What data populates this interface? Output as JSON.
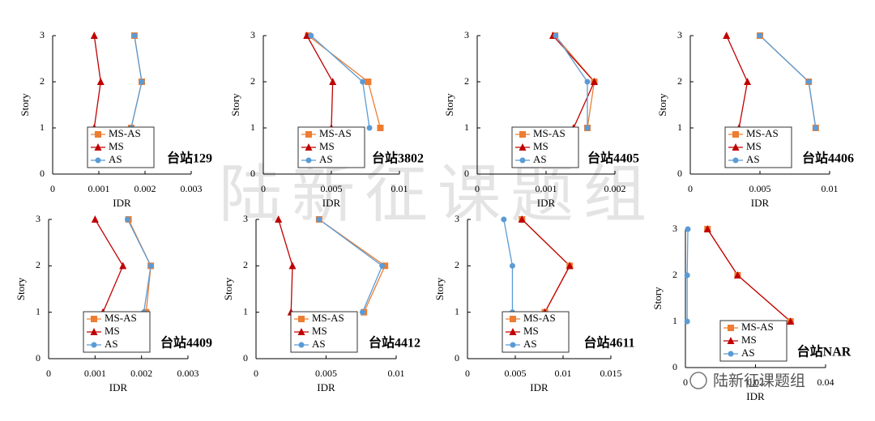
{
  "watermark": "陆新征课题组",
  "logo": "陆新征课题组",
  "chart_data": [
    {
      "type": "line",
      "title": "台站129",
      "x_label": "IDR",
      "y_label": "Story",
      "y": [
        1,
        2,
        3
      ],
      "xlim": [
        0,
        0.003
      ],
      "xticks": [
        0,
        0.001,
        0.002,
        0.003
      ],
      "ylim": [
        0,
        3
      ],
      "yticks": [
        0,
        1,
        2,
        3
      ],
      "series": [
        {
          "name": "MS-AS",
          "color": "#ed7d31",
          "marker": "square",
          "values": [
            0.0017,
            0.00193,
            0.00177
          ]
        },
        {
          "name": "MS",
          "color": "#c00000",
          "marker": "triangle",
          "values": [
            0.0009,
            0.00104,
            0.0009
          ]
        },
        {
          "name": "AS",
          "color": "#5b9bd5",
          "marker": "circle",
          "values": [
            0.0017,
            0.00193,
            0.00177
          ]
        }
      ]
    },
    {
      "type": "line",
      "title": "台站3802",
      "x_label": "IDR",
      "y_label": "Story",
      "y": [
        1,
        2,
        3
      ],
      "xlim": [
        0,
        0.01
      ],
      "xticks": [
        0,
        0.005,
        0.01
      ],
      "ylim": [
        0,
        3
      ],
      "yticks": [
        0,
        1,
        2,
        3
      ],
      "series": [
        {
          "name": "MS-AS",
          "color": "#ed7d31",
          "marker": "square",
          "values": [
            0.0086,
            0.0077,
            0.0033
          ]
        },
        {
          "name": "MS",
          "color": "#c00000",
          "marker": "triangle",
          "values": [
            0.005,
            0.0051,
            0.0032
          ]
        },
        {
          "name": "AS",
          "color": "#5b9bd5",
          "marker": "circle",
          "values": [
            0.0078,
            0.0073,
            0.0035
          ]
        }
      ]
    },
    {
      "type": "line",
      "title": "台站4405",
      "x_label": "IDR",
      "y_label": "Story",
      "y": [
        1,
        2,
        3
      ],
      "xlim": [
        0,
        0.002
      ],
      "xticks": [
        0,
        0.001,
        0.002
      ],
      "ylim": [
        0,
        3
      ],
      "yticks": [
        0,
        1,
        2,
        3
      ],
      "series": [
        {
          "name": "MS-AS",
          "color": "#ed7d31",
          "marker": "square",
          "values": [
            0.0016,
            0.0017,
            0.00113
          ]
        },
        {
          "name": "MS",
          "color": "#c00000",
          "marker": "triangle",
          "values": [
            0.0014,
            0.0017,
            0.0011
          ]
        },
        {
          "name": "AS",
          "color": "#5b9bd5",
          "marker": "circle",
          "values": [
            0.0016,
            0.0016,
            0.00114
          ]
        }
      ]
    },
    {
      "type": "line",
      "title": "台站4406",
      "x_label": "IDR",
      "y_label": "Story",
      "y": [
        1,
        2,
        3
      ],
      "xlim": [
        0,
        0.01
      ],
      "xticks": [
        0,
        0.005,
        0.01
      ],
      "ylim": [
        0,
        3
      ],
      "yticks": [
        0,
        1,
        2,
        3
      ],
      "series": [
        {
          "name": "MS-AS",
          "color": "#ed7d31",
          "marker": "square",
          "values": [
            0.009,
            0.0085,
            0.005
          ]
        },
        {
          "name": "MS",
          "color": "#c00000",
          "marker": "triangle",
          "values": [
            0.0035,
            0.0041,
            0.0026
          ]
        },
        {
          "name": "AS",
          "color": "#5b9bd5",
          "marker": "circle",
          "values": [
            0.009,
            0.0085,
            0.005
          ]
        }
      ]
    },
    {
      "type": "line",
      "title": "台站4409",
      "x_label": "IDR",
      "y_label": "Story",
      "y": [
        1,
        2,
        3
      ],
      "xlim": [
        0,
        0.003
      ],
      "xticks": [
        0,
        0.001,
        0.002,
        0.003
      ],
      "ylim": [
        0,
        3
      ],
      "yticks": [
        0,
        1,
        2,
        3
      ],
      "series": [
        {
          "name": "MS-AS",
          "color": "#ed7d31",
          "marker": "square",
          "values": [
            0.0021,
            0.0022,
            0.00172
          ]
        },
        {
          "name": "MS",
          "color": "#c00000",
          "marker": "triangle",
          "values": [
            0.00117,
            0.0016,
            0.001
          ]
        },
        {
          "name": "AS",
          "color": "#5b9bd5",
          "marker": "circle",
          "values": [
            0.00205,
            0.0022,
            0.0017
          ]
        }
      ]
    },
    {
      "type": "line",
      "title": "台站4412",
      "x_label": "IDR",
      "y_label": "Story",
      "y": [
        1,
        2,
        3
      ],
      "xlim": [
        0,
        0.01
      ],
      "xticks": [
        0,
        0.005,
        0.01
      ],
      "ylim": [
        0,
        3
      ],
      "yticks": [
        0,
        1,
        2,
        3
      ],
      "series": [
        {
          "name": "MS-AS",
          "color": "#ed7d31",
          "marker": "square",
          "values": [
            0.0077,
            0.0092,
            0.0045
          ]
        },
        {
          "name": "MS",
          "color": "#c00000",
          "marker": "triangle",
          "values": [
            0.0025,
            0.0026,
            0.0016
          ]
        },
        {
          "name": "AS",
          "color": "#5b9bd5",
          "marker": "circle",
          "values": [
            0.0076,
            0.009,
            0.0045
          ]
        }
      ]
    },
    {
      "type": "line",
      "title": "台站4611",
      "x_label": "IDR",
      "y_label": "Story",
      "y": [
        1,
        2,
        3
      ],
      "xlim": [
        0,
        0.015
      ],
      "xticks": [
        0,
        0.005,
        0.01,
        0.015
      ],
      "ylim": [
        0,
        3
      ],
      "yticks": [
        0,
        1,
        2,
        3
      ],
      "series": [
        {
          "name": "MS-AS",
          "color": "#ed7d31",
          "marker": "square",
          "values": [
            0.0081,
            0.0107,
            0.0057
          ]
        },
        {
          "name": "MS",
          "color": "#c00000",
          "marker": "triangle",
          "values": [
            0.0081,
            0.0107,
            0.0057
          ]
        },
        {
          "name": "AS",
          "color": "#5b9bd5",
          "marker": "circle",
          "values": [
            0.0047,
            0.0047,
            0.0038
          ]
        }
      ]
    },
    {
      "type": "line",
      "title": "台站NAR",
      "x_label": "IDR",
      "y_label": "Story",
      "y": [
        1,
        2,
        3
      ],
      "xlim": [
        0,
        0.04
      ],
      "xticks": [
        0,
        0.02,
        0.04
      ],
      "ylim": [
        0,
        3
      ],
      "yticks": [
        0,
        1,
        2,
        3
      ],
      "series": [
        {
          "name": "MS-AS",
          "color": "#ed7d31",
          "marker": "square",
          "values": [
            0.03,
            0.0149,
            0.0063
          ]
        },
        {
          "name": "MS",
          "color": "#c00000",
          "marker": "triangle",
          "values": [
            0.03,
            0.0149,
            0.0063
          ]
        },
        {
          "name": "AS",
          "color": "#5b9bd5",
          "marker": "circle",
          "values": [
            0.0005,
            0.0005,
            0.0007
          ]
        }
      ]
    }
  ]
}
